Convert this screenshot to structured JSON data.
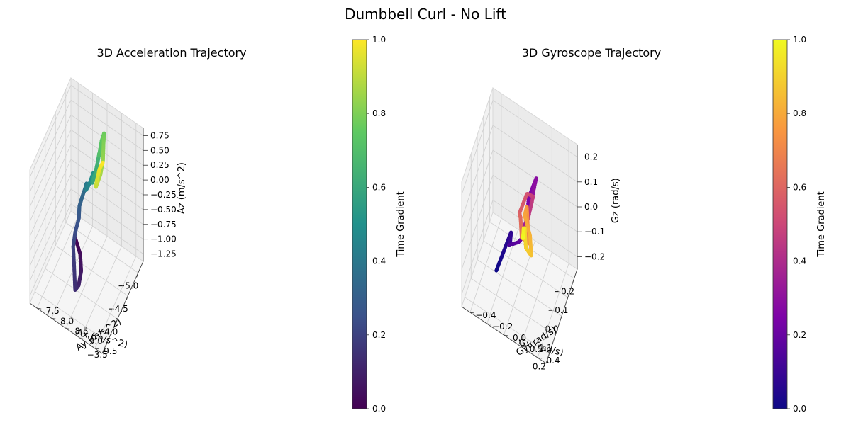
{
  "figure": {
    "suptitle": "Dumbbell Curl - No Lift"
  },
  "chart_data": [
    {
      "type": "scatter3d",
      "title": "3D Acceleration Trajectory",
      "xlabel": "Ax (m/s^2)",
      "ylabel": "Ay (m/s^2)",
      "zlabel": "Az (m/s^2)",
      "x_ticks": [
        "−5.0",
        "−4.5",
        "−4.0",
        "−3.5"
      ],
      "y_ticks": [
        "7.5",
        "8.0",
        "8.5",
        "9.0",
        "9.5"
      ],
      "z_ticks": [
        "−1.25",
        "−1.00",
        "−0.75",
        "−0.50",
        "−0.25",
        "0.00",
        "0.25",
        "0.50",
        "0.75"
      ],
      "xlim": [
        -5.3,
        -3.3
      ],
      "ylim": [
        7.4,
        9.8
      ],
      "zlim": [
        -1.25,
        0.75
      ],
      "colormap": "viridis",
      "colorbar": {
        "label": "Time Gradient",
        "ticks": [
          "0.0",
          "0.2",
          "0.4",
          "0.6",
          "0.8",
          "1.0"
        ]
      },
      "grid": true,
      "trajectory": [
        [
          -3.75,
          8.6,
          -0.2
        ],
        [
          -3.7,
          8.8,
          -0.35
        ],
        [
          -3.6,
          8.9,
          -0.5
        ],
        [
          -3.55,
          8.85,
          -0.7
        ],
        [
          -3.6,
          8.7,
          -0.85
        ],
        [
          -3.7,
          8.6,
          -0.6
        ],
        [
          -3.8,
          8.5,
          -0.4
        ],
        [
          -3.9,
          8.5,
          -0.25
        ],
        [
          -4.0,
          8.55,
          -0.1
        ],
        [
          -4.1,
          8.5,
          0.0
        ],
        [
          -4.25,
          8.5,
          0.05
        ],
        [
          -4.35,
          8.55,
          0.15
        ],
        [
          -4.45,
          8.5,
          0.1
        ],
        [
          -4.5,
          8.45,
          -0.05
        ],
        [
          -4.6,
          8.5,
          0.0
        ],
        [
          -4.7,
          8.55,
          0.1
        ],
        [
          -4.75,
          8.5,
          0.0
        ],
        [
          -4.8,
          8.45,
          -0.15
        ],
        [
          -4.85,
          8.5,
          -0.05
        ],
        [
          -4.9,
          8.55,
          0.1
        ],
        [
          -5.0,
          8.55,
          0.2
        ],
        [
          -5.05,
          8.5,
          0.1
        ],
        [
          -5.1,
          8.55,
          0.3
        ],
        [
          -5.15,
          8.6,
          0.4
        ],
        [
          -5.2,
          8.55,
          0.2
        ],
        [
          -5.25,
          8.5,
          -0.1
        ],
        [
          -5.2,
          8.45,
          -0.3
        ],
        [
          -5.05,
          8.4,
          -0.4
        ],
        [
          -4.95,
          8.5,
          -0.2
        ],
        [
          -5.0,
          8.55,
          -0.05
        ],
        [
          -5.1,
          8.6,
          0.0
        ]
      ]
    },
    {
      "type": "scatter3d",
      "title": "3D Gyroscope Trajectory",
      "xlabel": "Gx (rad/s)",
      "ylabel": "Gy (rad/s)",
      "zlabel": "Gz (rad/s)",
      "x_ticks": [
        "−0.2",
        "−0.1",
        "0.0",
        "0.1",
        "0.2"
      ],
      "y_ticks": [
        "−0.4",
        "−0.2",
        "0.0",
        "0.2",
        "0.4"
      ],
      "z_ticks": [
        "−0.2",
        "−0.1",
        "0.0",
        "0.1",
        "0.2"
      ],
      "xlim": [
        -0.25,
        0.25
      ],
      "ylim": [
        -0.5,
        0.5
      ],
      "zlim": [
        -0.25,
        0.25
      ],
      "colormap": "plasma",
      "colorbar": {
        "label": "Time Gradient",
        "ticks": [
          "0.0",
          "0.2",
          "0.4",
          "0.6",
          "0.8",
          "1.0"
        ]
      },
      "grid": true,
      "trajectory": [
        [
          0.1,
          -0.2,
          -0.15
        ],
        [
          0.05,
          -0.15,
          -0.1
        ],
        [
          0.0,
          -0.1,
          -0.05
        ],
        [
          -0.05,
          -0.15,
          -0.15
        ],
        [
          -0.1,
          -0.2,
          -0.2
        ],
        [
          -0.12,
          -0.1,
          -0.18
        ],
        [
          -0.08,
          0.0,
          -0.1
        ],
        [
          -0.15,
          0.0,
          0.0
        ],
        [
          -0.2,
          0.05,
          0.05
        ],
        [
          -0.1,
          0.05,
          0.0
        ],
        [
          0.0,
          0.05,
          0.0
        ],
        [
          0.05,
          0.1,
          0.05
        ],
        [
          0.1,
          0.15,
          0.1
        ],
        [
          0.05,
          0.2,
          0.2
        ],
        [
          0.0,
          0.1,
          0.15
        ],
        [
          -0.05,
          0.05,
          0.1
        ],
        [
          0.0,
          0.0,
          0.05
        ],
        [
          0.05,
          0.05,
          0.08
        ],
        [
          0.1,
          0.1,
          0.05
        ],
        [
          0.05,
          0.15,
          0.0
        ],
        [
          0.0,
          0.1,
          0.02
        ],
        [
          -0.05,
          0.05,
          0.05
        ],
        [
          0.05,
          0.1,
          0.1
        ],
        [
          0.1,
          0.2,
          0.08
        ],
        [
          0.15,
          0.25,
          0.05
        ],
        [
          0.1,
          0.15,
          0.02
        ],
        [
          0.05,
          0.1,
          0.05
        ],
        [
          0.0,
          0.05,
          0.0
        ],
        [
          0.08,
          0.1,
          0.03
        ]
      ]
    }
  ]
}
